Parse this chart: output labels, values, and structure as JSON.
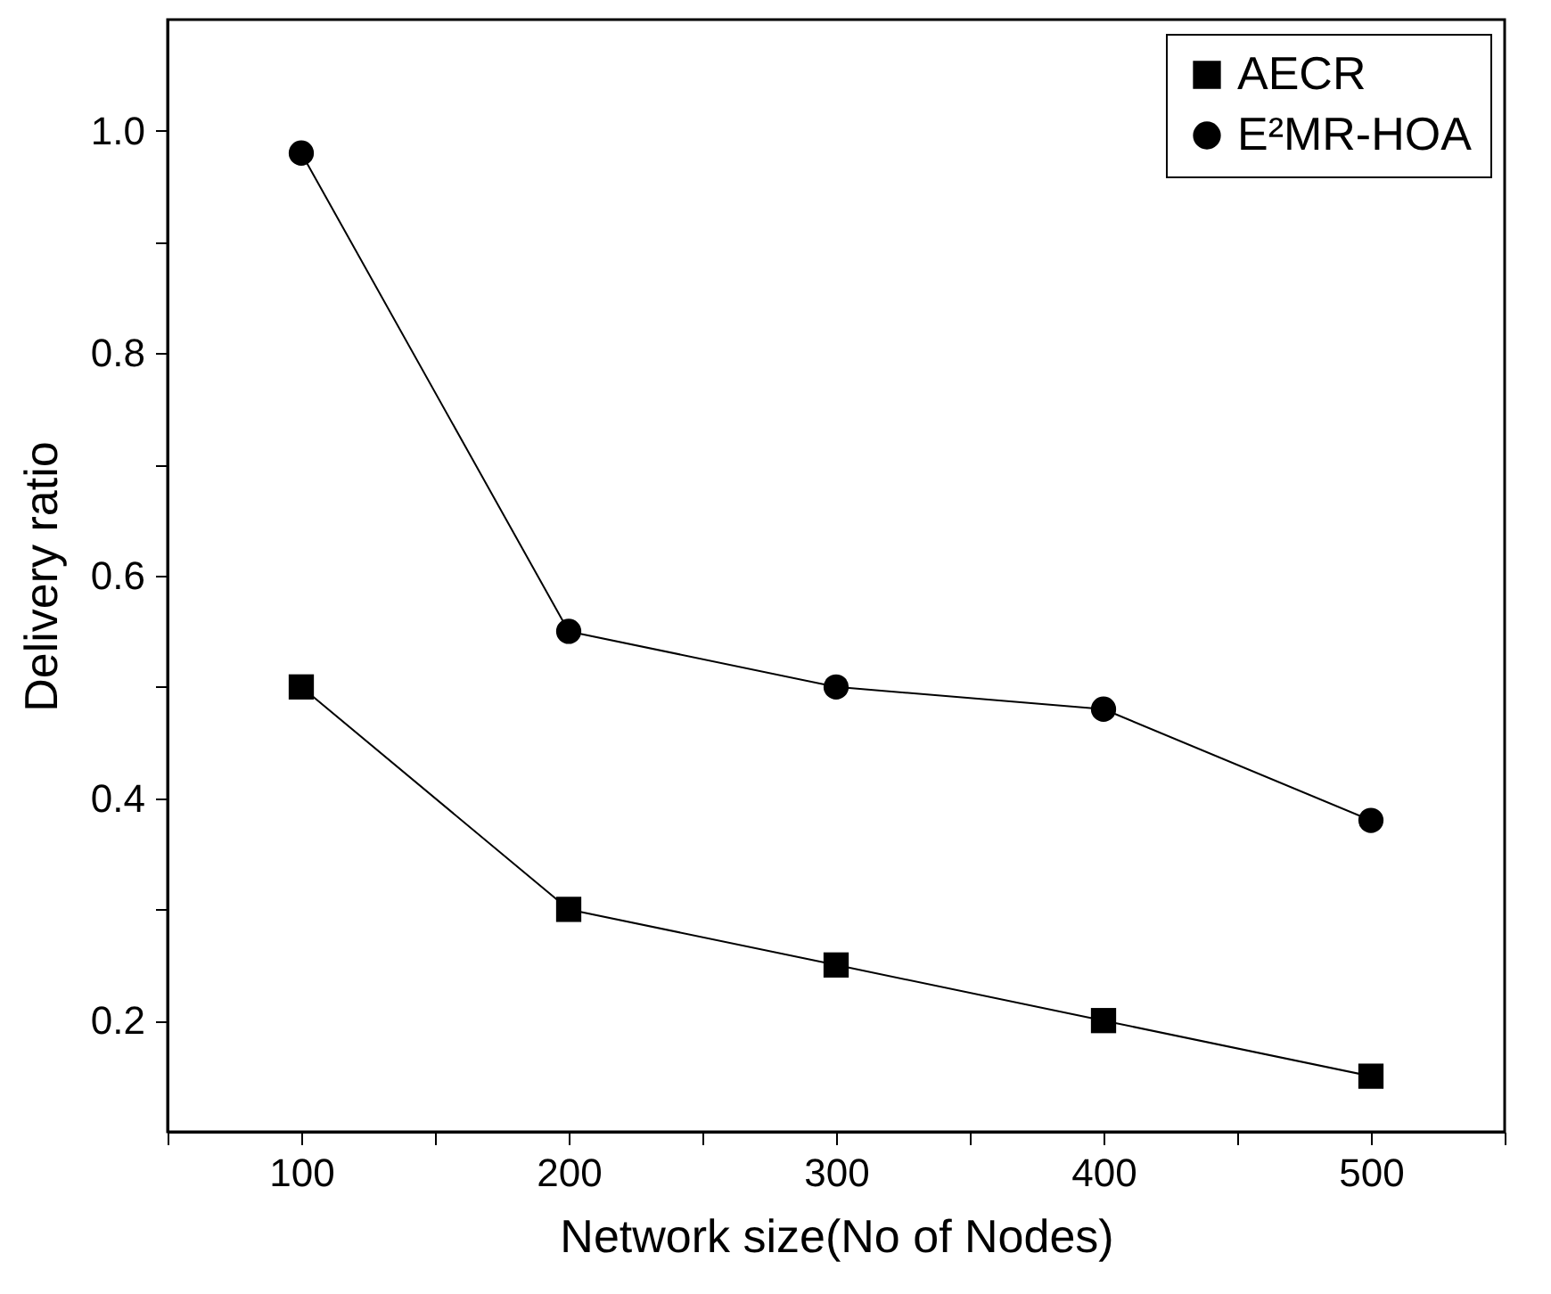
{
  "chart_data": {
    "type": "line",
    "xlabel": "Network size(No of Nodes)",
    "ylabel": "Delivery ratio",
    "x": [
      100,
      200,
      300,
      400,
      500
    ],
    "series": [
      {
        "name": "AECR",
        "color": "#000000",
        "marker": "square",
        "values": [
          0.5,
          0.3,
          0.25,
          0.2,
          0.15
        ]
      },
      {
        "name": "E²MR-HOA",
        "color": "#000000",
        "marker": "circle",
        "values": [
          0.98,
          0.55,
          0.5,
          0.48,
          0.38
        ]
      }
    ],
    "xlim": [
      50,
      550
    ],
    "xticks": [
      {
        "value": 50,
        "label": null
      },
      100,
      {
        "value": 150,
        "label": null
      },
      200,
      {
        "value": 250,
        "label": null
      },
      300,
      {
        "value": 350,
        "label": null
      },
      400,
      {
        "value": 450,
        "label": null
      },
      500,
      {
        "value": 550,
        "label": null
      }
    ],
    "ylim": [
      0.1,
      1.1
    ],
    "yticks": [
      0.2,
      {
        "value": 0.3,
        "label": null
      },
      0.4,
      {
        "value": 0.5,
        "label": null
      },
      0.6,
      {
        "value": 0.7,
        "label": null
      },
      0.8,
      {
        "value": 0.9,
        "label": null
      },
      {
        "value": 1.0,
        "label": "1.0"
      }
    ],
    "grid": false,
    "legend": "top right",
    "line_style": "solid"
  }
}
